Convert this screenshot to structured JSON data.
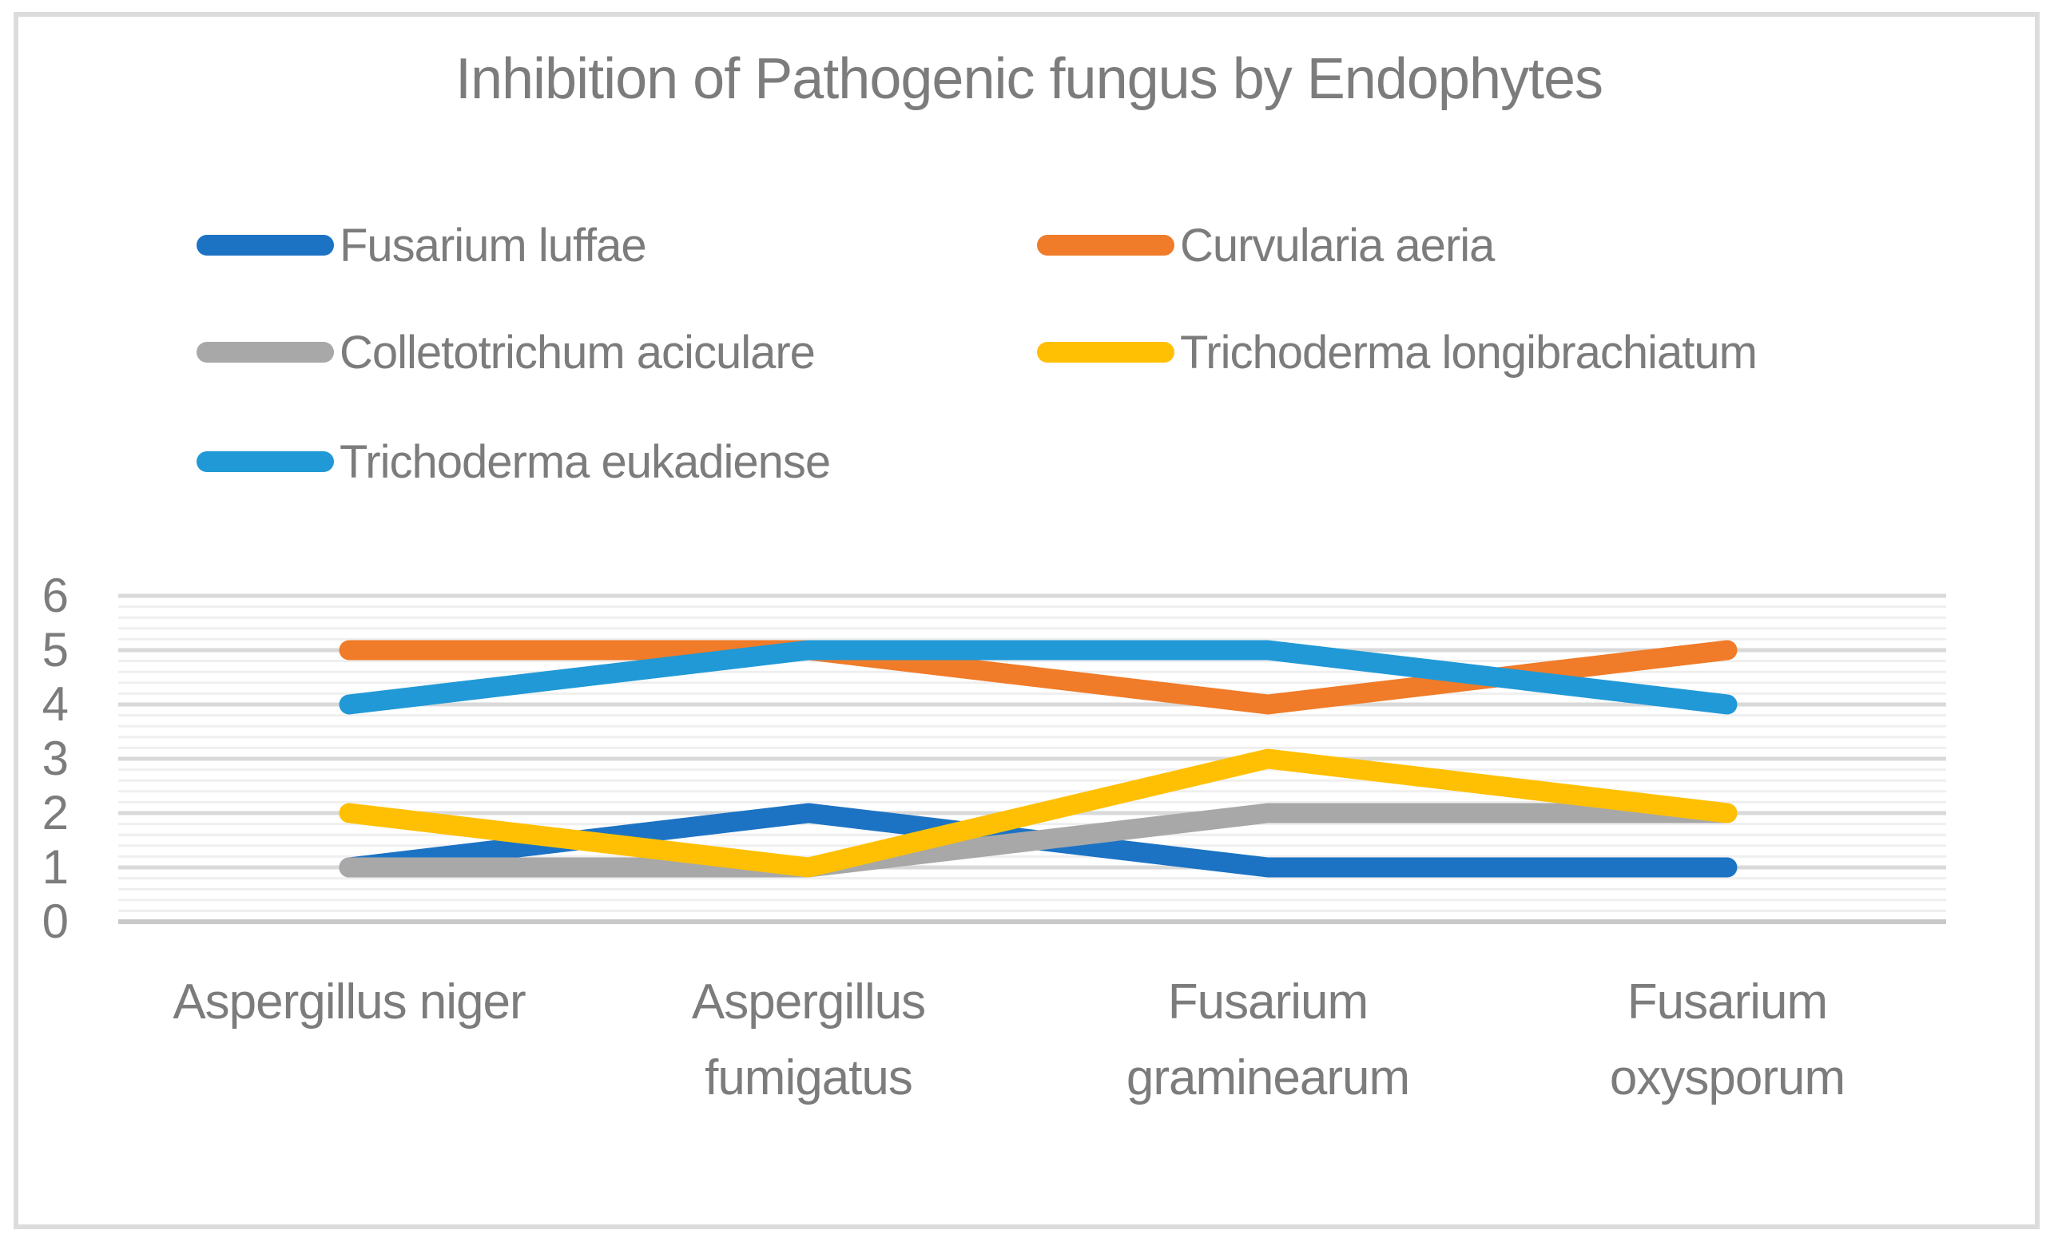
{
  "title": "Inhibition of Pathogenic fungus by Endophytes",
  "chart_data": {
    "type": "line",
    "title": "Inhibition of Pathogenic fungus by Endophytes",
    "categories": [
      "Aspergillus niger",
      "Aspergillus fumigatus",
      "Fusarium graminearum",
      "Fusarium oxysporum"
    ],
    "series": [
      {
        "name": "Fusarium luffae",
        "color": "#1C73C4",
        "values": [
          1,
          2,
          1,
          1
        ]
      },
      {
        "name": "Curvularia aeria",
        "color": "#F07B28",
        "values": [
          5,
          5,
          4,
          5
        ]
      },
      {
        "name": "Colletotrichum aciculare",
        "color": "#A8A8A8",
        "values": [
          1,
          1,
          2,
          2
        ]
      },
      {
        "name": "Trichoderma longibrachiatum",
        "color": "#FFC003",
        "values": [
          2,
          1,
          3,
          2
        ]
      },
      {
        "name": "Trichoderma eukadiense",
        "color": "#2199D6",
        "values": [
          4,
          5,
          5,
          4
        ]
      }
    ],
    "xlabel": "",
    "ylabel": "",
    "ylim": [
      0,
      6
    ],
    "y_ticks": [
      6,
      5,
      4,
      3,
      2,
      1,
      0
    ],
    "y_minor_step": 0.2,
    "grid": "horizontal major+minor",
    "legend_position": "top-left, two columns, three rows",
    "layout": {
      "category_line_breaks": [
        [
          "Aspergillus niger"
        ],
        [
          "Aspergillus",
          "fumigatus"
        ],
        [
          "Fusarium",
          "graminearum"
        ],
        [
          "Fusarium",
          "oxysporum"
        ]
      ]
    }
  },
  "theme": {
    "text_color": "#7C7C7C",
    "major_grid_color": "#D9D9D9",
    "minor_grid_color": "#EFEFEF",
    "zero_line_color": "#C9C9C9",
    "frame_border_color": "#DCDCDC",
    "background": "#FFFFFF"
  }
}
